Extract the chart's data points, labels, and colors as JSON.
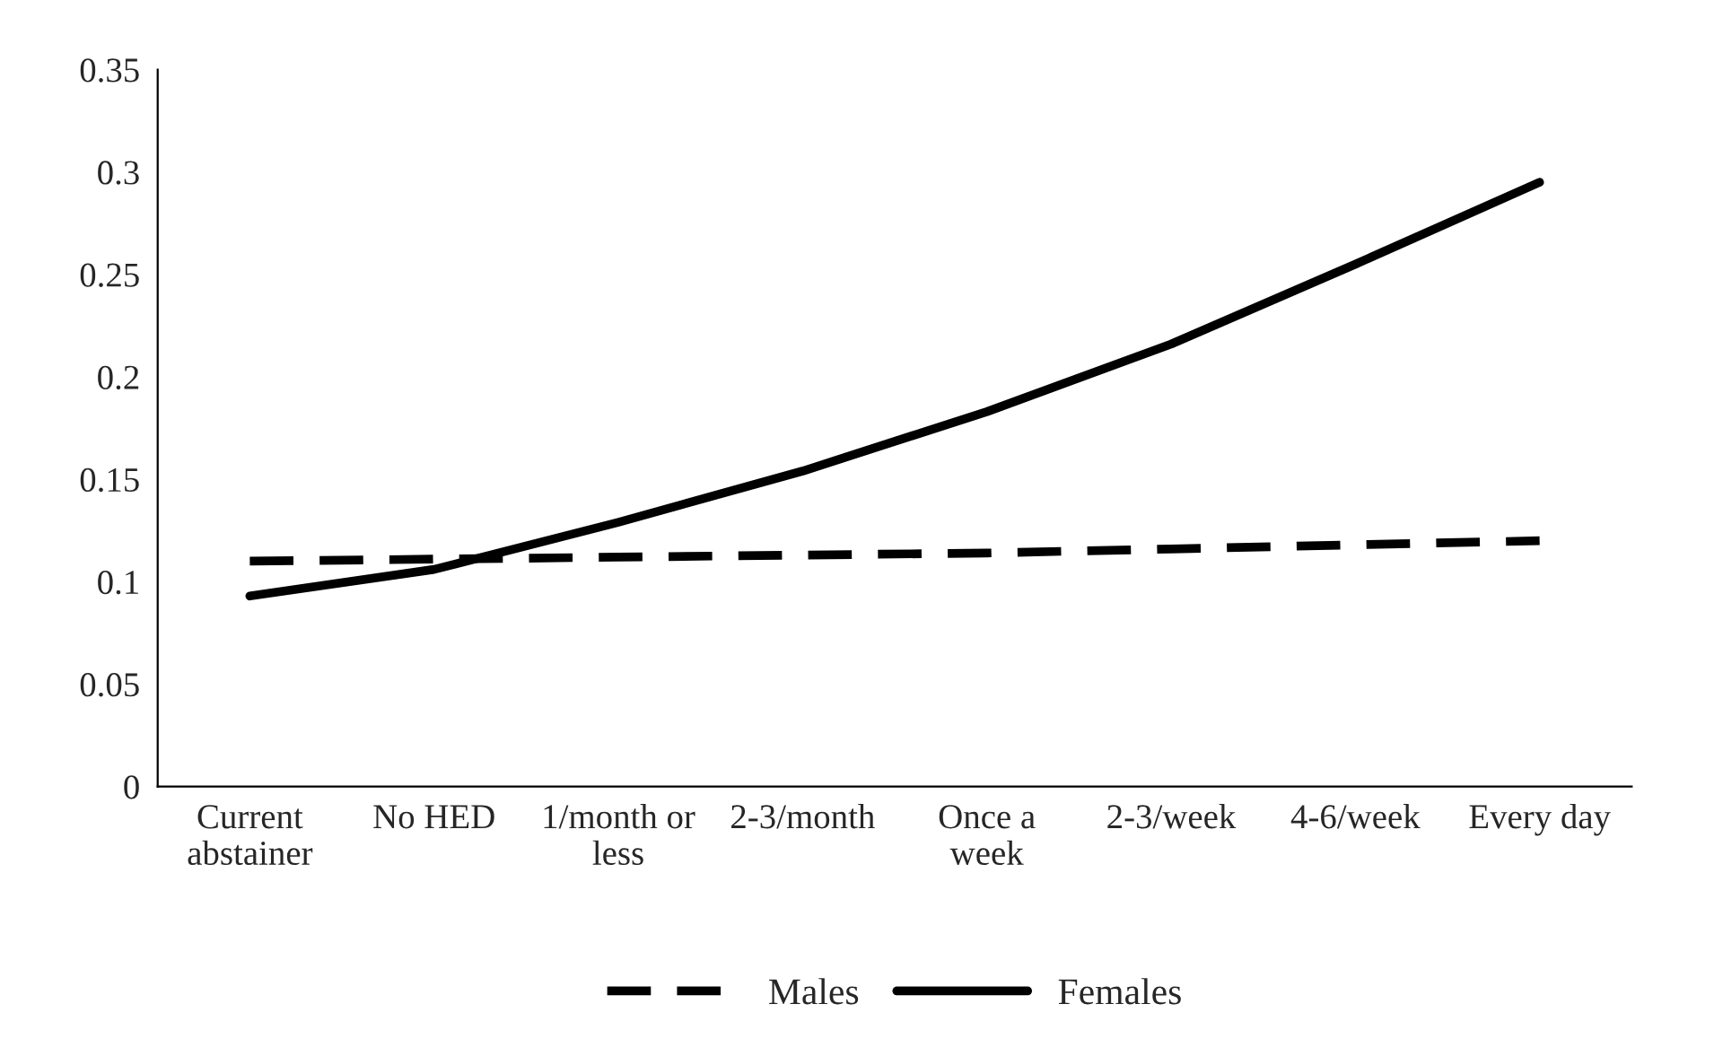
{
  "chart_data": {
    "type": "line",
    "categories": [
      "Current\nabstainer",
      "No HED",
      "1/month or\nless",
      "2-3/month",
      "Once a\nweek",
      "2-3/week",
      "4-6/week",
      "Every day"
    ],
    "series": [
      {
        "name": "Males",
        "color": "#000000",
        "line_style": "dashed",
        "values": [
          0.11,
          0.111,
          0.112,
          0.113,
          0.114,
          0.116,
          0.118,
          0.12
        ]
      },
      {
        "name": "Females",
        "color": "#000000",
        "line_style": "solid",
        "values": [
          0.093,
          0.106,
          0.129,
          0.154,
          0.183,
          0.216,
          0.255,
          0.295
        ]
      }
    ],
    "ylim": [
      0,
      0.35
    ],
    "yticks": [
      0,
      0.05,
      0.1,
      0.15,
      0.2,
      0.25,
      0.3,
      0.35
    ],
    "grid": false,
    "legend": "bottom",
    "marker": "none"
  }
}
